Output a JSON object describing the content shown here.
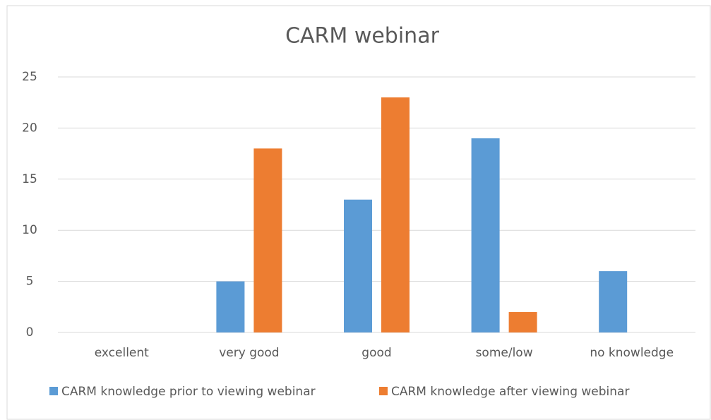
{
  "chart_data": {
    "type": "bar",
    "title": "CARM webinar",
    "categories": [
      "excellent",
      "very good",
      "good",
      "some/low",
      "no knowledge"
    ],
    "series": [
      {
        "name": "CARM knowledge prior to viewing webinar",
        "color": "#5b9bd5",
        "values": [
          0,
          5,
          13,
          19,
          6
        ]
      },
      {
        "name": "CARM knowledge after viewing webinar",
        "color": "#ed7d31",
        "values": [
          0,
          18,
          23,
          2,
          0
        ]
      }
    ],
    "ylim": [
      0,
      25
    ],
    "yticks": [
      0,
      5,
      10,
      15,
      20,
      25
    ],
    "grid": true,
    "legend": "bottom"
  }
}
